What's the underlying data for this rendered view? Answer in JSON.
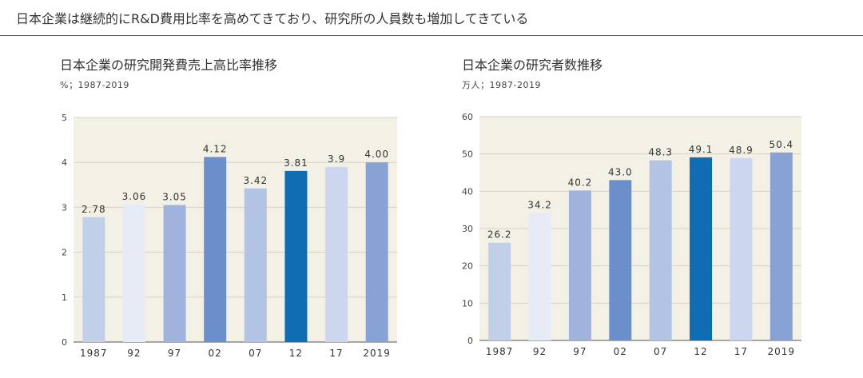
{
  "headline": "日本企業は継続的にR&D費用比率を高めてきており、研究所の人員数も増加してきている",
  "colors": {
    "plot_bg": "#f3f0e6",
    "gridline": "#d6d3c8",
    "axis": "#555555"
  },
  "chart_data": [
    {
      "type": "bar",
      "title": "日本企業の研究開発費売上高比率推移",
      "subtitle": "%；1987-2019",
      "categories": [
        "1987",
        "92",
        "97",
        "02",
        "07",
        "12",
        "17",
        "2019"
      ],
      "values": [
        2.78,
        3.06,
        3.05,
        4.12,
        3.42,
        3.81,
        3.9,
        4.0
      ],
      "value_labels": [
        "2.78",
        "3.06",
        "3.05",
        "4.12",
        "3.42",
        "3.81",
        "3.9",
        "4.00"
      ],
      "bar_colors": [
        "#c2cfe8",
        "#e6ebf6",
        "#9fb3dd",
        "#6b8fcb",
        "#b3c3e3",
        "#0e6db3",
        "#ccd7ef",
        "#87a3d6"
      ],
      "ylim": [
        0,
        5
      ],
      "yticks": [
        "0",
        "1",
        "2",
        "3",
        "4",
        "5"
      ],
      "ytick_values": [
        0,
        1,
        2,
        3,
        4,
        5
      ],
      "grid": true
    },
    {
      "type": "bar",
      "title": "日本企業の研究者数推移",
      "subtitle": "万人；1987-2019",
      "categories": [
        "1987",
        "92",
        "97",
        "02",
        "07",
        "12",
        "17",
        "2019"
      ],
      "values": [
        26.2,
        34.2,
        40.2,
        43.0,
        48.3,
        49.1,
        48.9,
        50.4
      ],
      "value_labels": [
        "26.2",
        "34.2",
        "40.2",
        "43.0",
        "48.3",
        "49.1",
        "48.9",
        "50.4"
      ],
      "bar_colors": [
        "#c2cfe8",
        "#e6ebf6",
        "#9fb3dd",
        "#6b8fcb",
        "#b3c3e3",
        "#0e6db3",
        "#ccd7ef",
        "#87a3d6"
      ],
      "ylim": [
        0,
        60
      ],
      "yticks": [
        "0",
        "10",
        "20",
        "30",
        "40",
        "50",
        "60"
      ],
      "ytick_values": [
        0,
        10,
        20,
        30,
        40,
        50,
        60
      ],
      "grid": true
    }
  ]
}
